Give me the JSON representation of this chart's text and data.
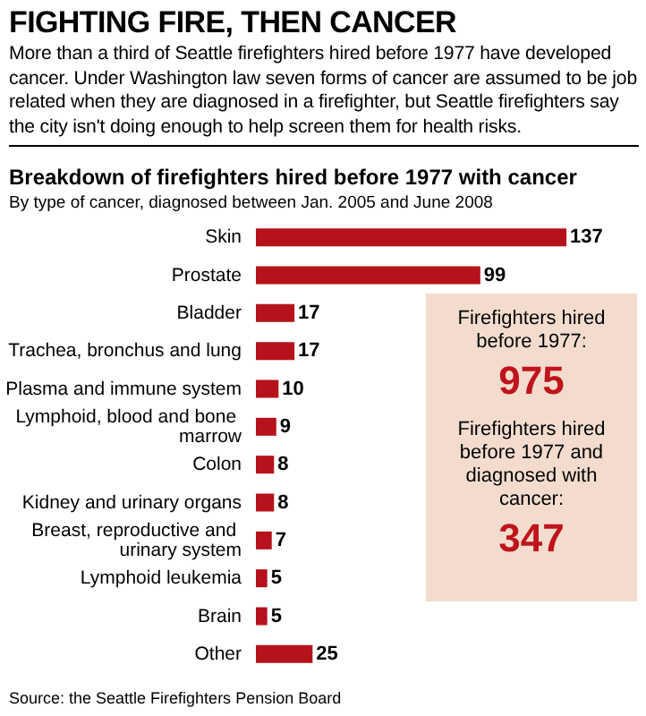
{
  "chart_data": [
    {
      "type": "bar",
      "orientation": "horizontal",
      "title": "FIGHTING FIRE, THEN CANCER",
      "subtitle": "More than a third of Seattle firefighters hired before 1977 have developed cancer. Under Washington law seven forms of cancer are assumed to be job related when they are diagnosed in a firefighter, but Seattle firefighters say the city isn't doing enough to help screen them for health risks.",
      "annotations": [
        "Breakdown of firefighters hired before 1977 with cancer",
        "By type of cancer, diagnosed between Jan. 2005 and June 2008",
        "Source: the Seattle Firefighters Pension Board"
      ],
      "categories": [
        "Skin",
        "Prostate",
        "Bladder",
        "Trachea, bronchus and lung",
        "Plasma and immune system",
        "Lymphoid, blood and bone marrow",
        "Colon",
        "Kidney and urinary organs",
        "Breast, reproductive and urinary system",
        "Lymphoid leukemia",
        "Brain",
        "Other"
      ],
      "values": [
        137,
        99,
        17,
        17,
        10,
        9,
        8,
        8,
        7,
        5,
        5,
        25
      ],
      "color": "#b5121b",
      "data_labels": true
    },
    {
      "type": "other",
      "annotations": [
        "Firefighters hired before 1977:",
        "975",
        "Firefighters hired before 1977 and diagnosed with cancer:",
        "347"
      ]
    }
  ]
}
